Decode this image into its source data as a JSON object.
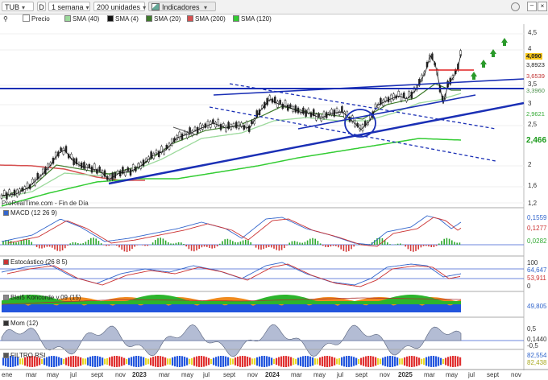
{
  "toolbar": {
    "ticker": "TUB",
    "mode_letter": "D",
    "period": "1 semana",
    "units": "200 unidades",
    "indicators_button": "Indicadores"
  },
  "legend": {
    "price": "Precio",
    "ma_items": [
      {
        "label": "SMA (40)",
        "color": "#9bd99b"
      },
      {
        "label": "SMA (4)",
        "color": "#111111"
      },
      {
        "label": "SMA (20)",
        "color": "#3d7a2a"
      },
      {
        "label": "SMA (200)",
        "color": "#d65050"
      },
      {
        "label": "SMA (120)",
        "color": "#33cc33"
      }
    ]
  },
  "source_text": "ProRealTime.com - Fin de Día",
  "price_axis": {
    "ticks": [
      "4,5",
      "4",
      "3,5",
      "3",
      "2,5",
      "2",
      "1,6",
      "1,2"
    ],
    "tags": [
      {
        "text": "4,090",
        "bg": "#f5c518",
        "fg": "#000"
      },
      {
        "text": "3,8923",
        "bg": "#ffffff",
        "fg": "#333"
      },
      {
        "text": "3,6539",
        "bg": "#ffffff",
        "fg": "#c03030"
      },
      {
        "text": "3,3960",
        "bg": "#ffffff",
        "fg": "#4a8f4a"
      },
      {
        "text": "2,9621",
        "bg": "#ffffff",
        "fg": "#33aa33"
      },
      {
        "text": "2,466",
        "bg": "#ffffff",
        "fg": "#1a9a1a"
      }
    ]
  },
  "panels": [
    {
      "id": "macd",
      "title": "MACD (12 26 9)",
      "values": [
        {
          "text": "0,1559",
          "color": "#3366cc"
        },
        {
          "text": "0,1277",
          "color": "#cc3333"
        },
        {
          "text": "0,0282",
          "color": "#33aa33"
        }
      ]
    },
    {
      "id": "stoch",
      "title": "Estocástico (26 8 5)",
      "values": [
        {
          "text": "100",
          "color": "#333"
        },
        {
          "text": "64,647",
          "color": "#3366cc"
        },
        {
          "text": "53,911",
          "color": "#cc3333"
        },
        {
          "text": "0",
          "color": "#333"
        }
      ]
    },
    {
      "id": "blai5",
      "title": "Blai5 Koncorde v.09 (15)",
      "values": [
        {
          "text": "49,805",
          "color": "#3366cc"
        }
      ]
    },
    {
      "id": "mom",
      "title": "Mom (12)",
      "values": [
        {
          "text": "0,5",
          "color": "#333"
        },
        {
          "text": "0,1440",
          "color": "#333"
        },
        {
          "text": "-0,5",
          "color": "#333"
        }
      ]
    },
    {
      "id": "rsi",
      "title": "FILTRO RSI",
      "values": [
        {
          "text": "82,554",
          "color": "#3366cc"
        },
        {
          "text": "82,438",
          "color": "#cccc33"
        }
      ]
    }
  ],
  "x_axis": [
    "ene",
    "mar",
    "may",
    "jul",
    "sept",
    "nov",
    "2023",
    "mar",
    "may",
    "jul",
    "sept",
    "nov",
    "2024",
    "mar",
    "may",
    "jul",
    "sept",
    "nov",
    "2025",
    "mar",
    "may",
    "jul",
    "sept",
    "nov"
  ],
  "colors": {
    "trendline": "#1a2fb5",
    "resistance": "#e02020",
    "arrow": "#2a9a2a"
  }
}
